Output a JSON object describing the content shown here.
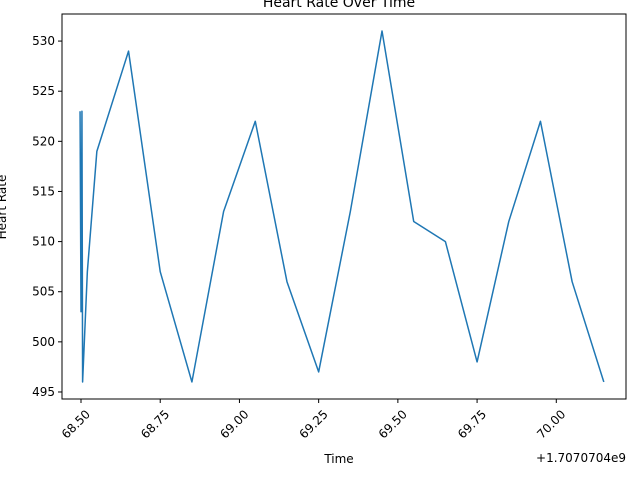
{
  "chart_data": {
    "type": "line",
    "title": "Heart Rate Over Time",
    "xlabel": "Time",
    "ylabel": "Heart Rate",
    "x_offset_label": "+1.7070704e9",
    "xlim": [
      68.44,
      70.22
    ],
    "ylim": [
      494.3,
      532.7
    ],
    "x_ticks": [
      68.5,
      68.75,
      69.0,
      69.25,
      69.5,
      69.75,
      70.0
    ],
    "x_tick_labels": [
      "68.50",
      "68.75",
      "69.00",
      "69.25",
      "69.50",
      "69.75",
      "70.00"
    ],
    "y_ticks": [
      495,
      500,
      505,
      510,
      515,
      520,
      525,
      530
    ],
    "y_tick_labels": [
      "495",
      "500",
      "505",
      "510",
      "515",
      "520",
      "525",
      "530"
    ],
    "grid": false,
    "color": "#1f77b4",
    "series": [
      {
        "x": [
          68.497,
          68.5,
          68.503,
          68.505,
          68.52,
          68.55,
          68.65,
          68.75,
          68.85,
          68.95,
          69.05,
          69.15,
          69.25,
          69.35,
          69.45,
          69.55,
          69.65,
          69.75,
          69.85,
          69.95,
          70.05,
          70.15
        ],
        "values": [
          523,
          503,
          523,
          496,
          507,
          519,
          529,
          507,
          496,
          513,
          522,
          506,
          497,
          513,
          531,
          512,
          510,
          498,
          512,
          522,
          506,
          496
        ]
      }
    ]
  }
}
